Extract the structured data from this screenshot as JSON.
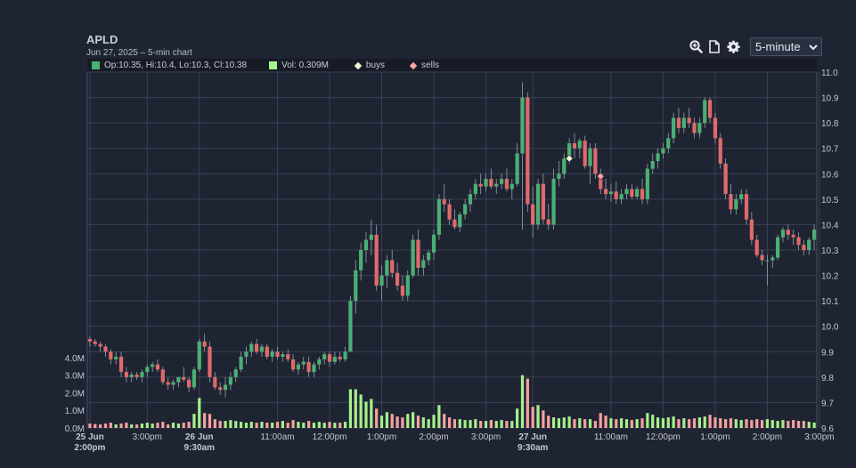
{
  "header": {
    "ticker": "APLD",
    "subtitle": "Jun 27, 2025 – 5-min chart"
  },
  "toolbar": {
    "icons": [
      "zoom-in-icon",
      "document-icon",
      "gear-icon"
    ],
    "interval_value": "5-minute"
  },
  "legend": {
    "ohlc_text": "Op:10.35, Hi:10.4, Lo:10.3, Cl:10.38",
    "vol_text": "Vol: 0.309M",
    "buys_label": "buys",
    "sells_label": "sells"
  },
  "colors": {
    "up": "#4caf74",
    "down": "#e06a6a",
    "vol_up": "#a6f08a",
    "vol_down": "#f7a0a0",
    "buy_marker": "#f4f4d2",
    "sell_marker": "#f7a3a3",
    "grid": "#3a4052",
    "background": "#1f2433"
  },
  "chart_data": {
    "type": "candlestick",
    "title": "APLD",
    "subtitle": "Jun 27, 2025 – 5-min chart",
    "price_axis": {
      "min": 9.6,
      "max": 11.0,
      "ticks": [
        "9.6",
        "9.7",
        "9.8",
        "9.9",
        "10.0",
        "10.1",
        "10.2",
        "10.3",
        "10.4",
        "10.5",
        "10.6",
        "10.7",
        "10.8",
        "10.9",
        "11.0"
      ]
    },
    "volume_axis": {
      "unit": "M",
      "max": 4.5,
      "ticks": [
        "0.0M",
        "1.0M",
        "2.0M",
        "3.0M",
        "4.0M"
      ]
    },
    "x_ticks": [
      {
        "i": 0,
        "label": "25 Jun",
        "label2": "2:00pm",
        "bold": true
      },
      {
        "i": 11,
        "label": "3:00pm",
        "label2": "",
        "bold": false
      },
      {
        "i": 21,
        "label": "26 Jun",
        "label2": "9:30am",
        "bold": true
      },
      {
        "i": 36,
        "label": "11:00am",
        "label2": "",
        "bold": false
      },
      {
        "i": 46,
        "label": "12:00pm",
        "label2": "",
        "bold": false
      },
      {
        "i": 56,
        "label": "1:00pm",
        "label2": "",
        "bold": false
      },
      {
        "i": 66,
        "label": "2:00pm",
        "label2": "",
        "bold": false
      },
      {
        "i": 76,
        "label": "3:00pm",
        "label2": "",
        "bold": false
      },
      {
        "i": 85,
        "label": "27 Jun",
        "label2": "9:30am",
        "bold": true
      },
      {
        "i": 100,
        "label": "11:00am",
        "label2": "",
        "bold": false
      },
      {
        "i": 110,
        "label": "12:00pm",
        "label2": "",
        "bold": false
      },
      {
        "i": 120,
        "label": "1:00pm",
        "label2": "",
        "bold": false
      },
      {
        "i": 130,
        "label": "2:00pm",
        "label2": "",
        "bold": false
      },
      {
        "i": 140,
        "label": "3:00pm",
        "label2": "",
        "bold": false
      }
    ],
    "ohlc": [
      [
        9.95,
        9.96,
        9.92,
        9.94
      ],
      [
        9.94,
        9.95,
        9.92,
        9.93
      ],
      [
        9.93,
        9.94,
        9.9,
        9.92
      ],
      [
        9.92,
        9.93,
        9.88,
        9.9
      ],
      [
        9.9,
        9.91,
        9.85,
        9.87
      ],
      [
        9.87,
        9.9,
        9.85,
        9.88
      ],
      [
        9.88,
        9.9,
        9.8,
        9.82
      ],
      [
        9.82,
        9.84,
        9.78,
        9.8
      ],
      [
        9.8,
        9.82,
        9.78,
        9.81
      ],
      [
        9.81,
        9.82,
        9.79,
        9.8
      ],
      [
        9.8,
        9.83,
        9.78,
        9.82
      ],
      [
        9.82,
        9.85,
        9.8,
        9.84
      ],
      [
        9.84,
        9.86,
        9.82,
        9.85
      ],
      [
        9.85,
        9.87,
        9.82,
        9.83
      ],
      [
        9.83,
        9.84,
        9.77,
        9.78
      ],
      [
        9.78,
        9.8,
        9.75,
        9.77
      ],
      [
        9.77,
        9.79,
        9.75,
        9.78
      ],
      [
        9.78,
        9.8,
        9.76,
        9.8
      ],
      [
        9.8,
        9.84,
        9.78,
        9.79
      ],
      [
        9.79,
        9.8,
        9.74,
        9.76
      ],
      [
        9.76,
        9.84,
        9.75,
        9.83
      ],
      [
        9.83,
        9.95,
        9.82,
        9.94
      ],
      [
        9.94,
        9.97,
        9.9,
        9.92
      ],
      [
        9.92,
        9.94,
        9.78,
        9.8
      ],
      [
        9.8,
        9.82,
        9.75,
        9.76
      ],
      [
        9.76,
        9.78,
        9.73,
        9.75
      ],
      [
        9.75,
        9.8,
        9.72,
        9.77
      ],
      [
        9.77,
        9.82,
        9.75,
        9.8
      ],
      [
        9.8,
        9.84,
        9.78,
        9.83
      ],
      [
        9.83,
        9.9,
        9.82,
        9.88
      ],
      [
        9.88,
        9.92,
        9.85,
        9.9
      ],
      [
        9.9,
        9.94,
        9.88,
        9.93
      ],
      [
        9.93,
        9.95,
        9.89,
        9.9
      ],
      [
        9.9,
        9.93,
        9.88,
        9.92
      ],
      [
        9.92,
        9.93,
        9.87,
        9.88
      ],
      [
        9.88,
        9.91,
        9.86,
        9.9
      ],
      [
        9.9,
        9.92,
        9.87,
        9.88
      ],
      [
        9.88,
        9.9,
        9.86,
        9.89
      ],
      [
        9.89,
        9.91,
        9.86,
        9.87
      ],
      [
        9.87,
        9.89,
        9.82,
        9.83
      ],
      [
        9.83,
        9.86,
        9.81,
        9.85
      ],
      [
        9.85,
        9.88,
        9.83,
        9.86
      ],
      [
        9.86,
        9.88,
        9.8,
        9.82
      ],
      [
        9.82,
        9.86,
        9.8,
        9.85
      ],
      [
        9.85,
        9.88,
        9.83,
        9.87
      ],
      [
        9.87,
        9.9,
        9.85,
        9.89
      ],
      [
        9.89,
        9.9,
        9.84,
        9.86
      ],
      [
        9.86,
        9.9,
        9.85,
        9.88
      ],
      [
        9.88,
        9.9,
        9.86,
        9.87
      ],
      [
        9.87,
        9.92,
        9.86,
        9.9
      ],
      [
        9.9,
        10.12,
        9.9,
        10.1
      ],
      [
        10.1,
        10.26,
        10.05,
        10.22
      ],
      [
        10.22,
        10.33,
        10.18,
        10.3
      ],
      [
        10.3,
        10.37,
        10.25,
        10.34
      ],
      [
        10.34,
        10.42,
        10.28,
        10.36
      ],
      [
        10.36,
        10.4,
        10.14,
        10.16
      ],
      [
        10.16,
        10.24,
        10.1,
        10.2
      ],
      [
        10.2,
        10.28,
        10.15,
        10.26
      ],
      [
        10.26,
        10.3,
        10.19,
        10.21
      ],
      [
        10.21,
        10.25,
        10.14,
        10.16
      ],
      [
        10.16,
        10.2,
        10.1,
        10.12
      ],
      [
        10.12,
        10.22,
        10.1,
        10.2
      ],
      [
        10.2,
        10.36,
        10.19,
        10.34
      ],
      [
        10.34,
        10.38,
        10.2,
        10.23
      ],
      [
        10.23,
        10.28,
        10.2,
        10.26
      ],
      [
        10.26,
        10.3,
        10.24,
        10.29
      ],
      [
        10.29,
        10.38,
        10.26,
        10.36
      ],
      [
        10.36,
        10.52,
        10.34,
        10.5
      ],
      [
        10.5,
        10.56,
        10.45,
        10.48
      ],
      [
        10.48,
        10.5,
        10.4,
        10.42
      ],
      [
        10.42,
        10.46,
        10.38,
        10.39
      ],
      [
        10.39,
        10.45,
        10.37,
        10.44
      ],
      [
        10.44,
        10.5,
        10.42,
        10.48
      ],
      [
        10.48,
        10.54,
        10.45,
        10.52
      ],
      [
        10.52,
        10.58,
        10.5,
        10.56
      ],
      [
        10.56,
        10.6,
        10.52,
        10.55
      ],
      [
        10.55,
        10.6,
        10.53,
        10.58
      ],
      [
        10.58,
        10.62,
        10.54,
        10.55
      ],
      [
        10.55,
        10.58,
        10.52,
        10.56
      ],
      [
        10.56,
        10.6,
        10.54,
        10.58
      ],
      [
        10.58,
        10.62,
        10.53,
        10.54
      ],
      [
        10.54,
        10.58,
        10.5,
        10.56
      ],
      [
        10.56,
        10.72,
        10.55,
        10.68
      ],
      [
        10.68,
        10.96,
        10.38,
        10.9
      ],
      [
        10.9,
        10.92,
        10.45,
        10.48
      ],
      [
        10.48,
        10.55,
        10.35,
        10.4
      ],
      [
        10.4,
        10.58,
        10.38,
        10.56
      ],
      [
        10.56,
        10.6,
        10.4,
        10.42
      ],
      [
        10.42,
        10.48,
        10.38,
        10.4
      ],
      [
        10.4,
        10.62,
        10.38,
        10.58
      ],
      [
        10.58,
        10.65,
        10.55,
        10.6
      ],
      [
        10.6,
        10.68,
        10.58,
        10.66
      ],
      [
        10.66,
        10.74,
        10.64,
        10.72
      ],
      [
        10.72,
        10.76,
        10.66,
        10.7
      ],
      [
        10.7,
        10.74,
        10.66,
        10.73
      ],
      [
        10.73,
        10.75,
        10.62,
        10.63
      ],
      [
        10.63,
        10.72,
        10.56,
        10.7
      ],
      [
        10.7,
        10.72,
        10.58,
        10.6
      ],
      [
        10.6,
        10.62,
        10.52,
        10.54
      ],
      [
        10.54,
        10.58,
        10.5,
        10.52
      ],
      [
        10.52,
        10.56,
        10.49,
        10.53
      ],
      [
        10.53,
        10.57,
        10.48,
        10.5
      ],
      [
        10.5,
        10.54,
        10.48,
        10.52
      ],
      [
        10.52,
        10.56,
        10.5,
        10.54
      ],
      [
        10.54,
        10.56,
        10.5,
        10.51
      ],
      [
        10.51,
        10.55,
        10.5,
        10.54
      ],
      [
        10.54,
        10.58,
        10.48,
        10.5
      ],
      [
        10.5,
        10.64,
        10.48,
        10.62
      ],
      [
        10.62,
        10.68,
        10.6,
        10.65
      ],
      [
        10.65,
        10.7,
        10.62,
        10.68
      ],
      [
        10.68,
        10.72,
        10.66,
        10.7
      ],
      [
        10.7,
        10.76,
        10.68,
        10.74
      ],
      [
        10.74,
        10.84,
        10.72,
        10.82
      ],
      [
        10.82,
        10.86,
        10.76,
        10.78
      ],
      [
        10.78,
        10.84,
        10.76,
        10.82
      ],
      [
        10.82,
        10.86,
        10.78,
        10.8
      ],
      [
        10.8,
        10.82,
        10.74,
        10.76
      ],
      [
        10.76,
        10.82,
        10.74,
        10.8
      ],
      [
        10.8,
        10.9,
        10.78,
        10.89
      ],
      [
        10.89,
        10.9,
        10.8,
        10.82
      ],
      [
        10.82,
        10.84,
        10.72,
        10.74
      ],
      [
        10.74,
        10.76,
        10.62,
        10.64
      ],
      [
        10.64,
        10.66,
        10.5,
        10.52
      ],
      [
        10.52,
        10.56,
        10.44,
        10.46
      ],
      [
        10.46,
        10.52,
        10.44,
        10.5
      ],
      [
        10.5,
        10.54,
        10.48,
        10.52
      ],
      [
        10.52,
        10.54,
        10.4,
        10.42
      ],
      [
        10.42,
        10.45,
        10.32,
        10.34
      ],
      [
        10.34,
        10.36,
        10.27,
        10.28
      ],
      [
        10.28,
        10.3,
        10.24,
        10.26
      ],
      [
        10.26,
        10.28,
        10.16,
        10.26
      ],
      [
        10.26,
        10.28,
        10.23,
        10.27
      ],
      [
        10.27,
        10.36,
        10.26,
        10.35
      ],
      [
        10.35,
        10.39,
        10.33,
        10.38
      ],
      [
        10.38,
        10.4,
        10.34,
        10.36
      ],
      [
        10.36,
        10.38,
        10.32,
        10.35
      ],
      [
        10.35,
        10.37,
        10.3,
        10.32
      ],
      [
        10.32,
        10.34,
        10.28,
        10.3
      ],
      [
        10.3,
        10.35,
        10.28,
        10.34
      ],
      [
        10.34,
        10.4,
        10.3,
        10.38
      ]
    ],
    "volume_m": [
      0.25,
      0.22,
      0.2,
      0.25,
      0.3,
      0.2,
      0.25,
      0.3,
      0.2,
      0.2,
      0.25,
      0.3,
      0.25,
      0.3,
      0.35,
      0.2,
      0.3,
      0.25,
      0.3,
      0.35,
      0.8,
      1.7,
      0.85,
      0.8,
      0.5,
      0.4,
      0.4,
      0.45,
      0.4,
      0.35,
      0.3,
      0.35,
      0.3,
      0.35,
      0.3,
      0.3,
      0.35,
      0.4,
      0.3,
      0.45,
      0.35,
      0.3,
      0.4,
      0.3,
      0.35,
      0.3,
      0.35,
      0.3,
      0.3,
      0.35,
      2.2,
      2.2,
      1.9,
      1.5,
      1.65,
      1.1,
      0.7,
      0.9,
      0.8,
      0.65,
      0.6,
      0.8,
      0.9,
      0.7,
      0.6,
      0.5,
      0.75,
      1.3,
      0.8,
      0.6,
      0.5,
      0.5,
      0.45,
      0.45,
      0.5,
      0.4,
      0.4,
      0.45,
      0.4,
      0.45,
      0.4,
      0.4,
      1.1,
      3.0,
      2.8,
      1.2,
      1.3,
      1.0,
      0.7,
      0.6,
      0.55,
      0.6,
      0.65,
      0.5,
      0.55,
      0.5,
      0.5,
      0.4,
      0.85,
      0.7,
      0.55,
      0.5,
      0.55,
      0.5,
      0.45,
      0.5,
      0.55,
      0.85,
      0.75,
      0.6,
      0.55,
      0.6,
      0.65,
      0.5,
      0.55,
      0.5,
      0.55,
      0.6,
      0.65,
      0.75,
      0.6,
      0.55,
      0.5,
      0.55,
      0.5,
      0.45,
      0.5,
      0.45,
      0.5,
      0.45,
      0.5,
      0.45,
      0.4,
      0.45,
      0.4,
      0.45,
      0.4,
      0.4,
      0.35,
      0.309
    ],
    "markers": [
      {
        "i": 92,
        "price": 10.66,
        "type": "buy"
      },
      {
        "i": 98,
        "price": 10.59,
        "type": "sell"
      }
    ]
  }
}
